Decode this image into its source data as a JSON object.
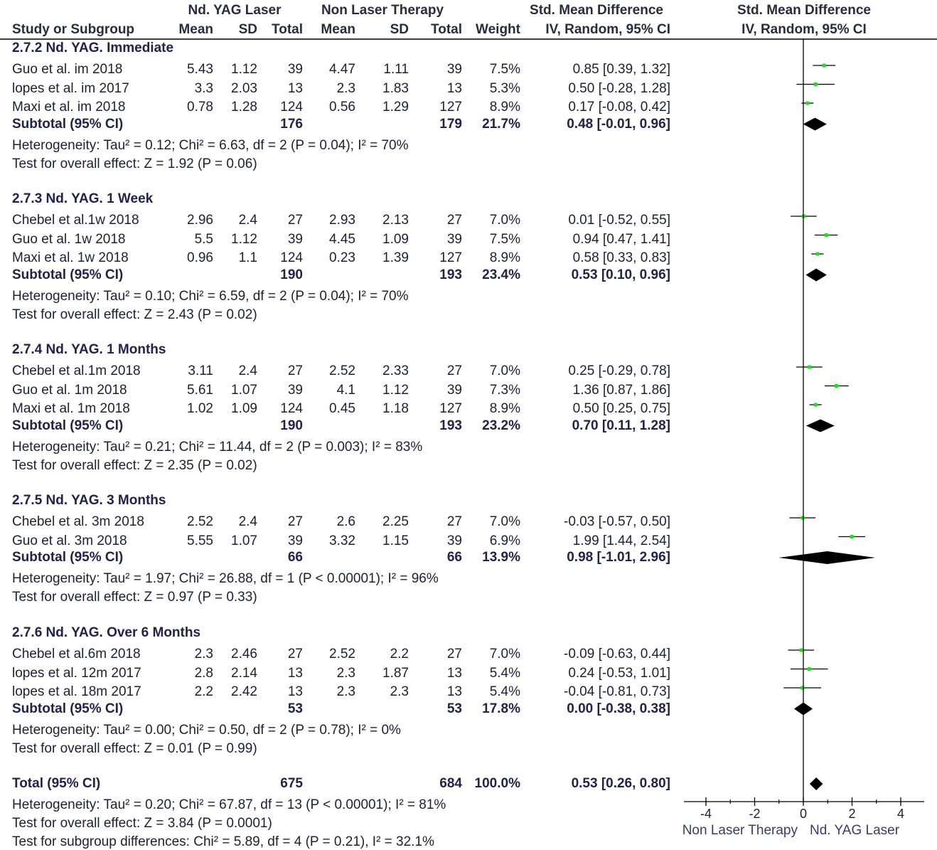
{
  "header": {
    "group1": "Nd. YAG Laser",
    "group2": "Non Laser Therapy",
    "smd_title": "Std. Mean Difference",
    "smd_method": "IV, Random, 95% CI",
    "plot_title": "Std. Mean Difference",
    "plot_method": "IV, Random, 95% CI",
    "col_study": "Study or Subgroup",
    "col_mean1": "Mean",
    "col_sd1": "SD",
    "col_total1": "Total",
    "col_mean2": "Mean",
    "col_sd2": "SD",
    "col_total2": "Total",
    "col_weight": "Weight"
  },
  "subgroups": [
    {
      "title": "2.7.2 Nd. YAG. Immediate",
      "studies": [
        {
          "name": "Guo et al. im 2018",
          "mean1": "5.43",
          "sd1": "1.12",
          "total1": "39",
          "mean2": "4.47",
          "sd2": "1.11",
          "total2": "39",
          "weight": "7.5%",
          "ci": "0.85 [0.39, 1.32]",
          "est": 0.85,
          "lo": 0.39,
          "hi": 1.32
        },
        {
          "name": "lopes et al. im  2017",
          "mean1": "3.3",
          "sd1": "2.03",
          "total1": "13",
          "mean2": "2.3",
          "sd2": "1.83",
          "total2": "13",
          "weight": "5.3%",
          "ci": "0.50 [-0.28, 1.28]",
          "est": 0.5,
          "lo": -0.28,
          "hi": 1.28
        },
        {
          "name": "Maxi et al. im 2018",
          "mean1": "0.78",
          "sd1": "1.28",
          "total1": "124",
          "mean2": "0.56",
          "sd2": "1.29",
          "total2": "127",
          "weight": "8.9%",
          "ci": "0.17 [-0.08, 0.42]",
          "est": 0.17,
          "lo": -0.08,
          "hi": 0.42
        }
      ],
      "subtotal": {
        "label": "Subtotal (95% CI)",
        "total1": "176",
        "total2": "179",
        "weight": "21.7%",
        "ci": "0.48 [-0.01, 0.96]",
        "est": 0.48,
        "lo": -0.01,
        "hi": 0.96
      },
      "heterogeneity": "Heterogeneity: Tau² = 0.12; Chi² = 6.63, df = 2 (P = 0.04); I² = 70%",
      "overall": "Test for overall effect: Z = 1.92 (P = 0.06)"
    },
    {
      "title": "2.7.3 Nd. YAG. 1 Week",
      "studies": [
        {
          "name": "Chebel et al.1w  2018",
          "mean1": "2.96",
          "sd1": "2.4",
          "total1": "27",
          "mean2": "2.93",
          "sd2": "2.13",
          "total2": "27",
          "weight": "7.0%",
          "ci": "0.01 [-0.52, 0.55]",
          "est": 0.01,
          "lo": -0.52,
          "hi": 0.55
        },
        {
          "name": "Guo et al. 1w 2018",
          "mean1": "5.5",
          "sd1": "1.12",
          "total1": "39",
          "mean2": "4.45",
          "sd2": "1.09",
          "total2": "39",
          "weight": "7.5%",
          "ci": "0.94 [0.47, 1.41]",
          "est": 0.94,
          "lo": 0.47,
          "hi": 1.41
        },
        {
          "name": "Maxi et al. 1w 2018",
          "mean1": "0.96",
          "sd1": "1.1",
          "total1": "124",
          "mean2": "0.23",
          "sd2": "1.39",
          "total2": "127",
          "weight": "8.9%",
          "ci": "0.58 [0.33, 0.83]",
          "est": 0.58,
          "lo": 0.33,
          "hi": 0.83
        }
      ],
      "subtotal": {
        "label": "Subtotal (95% CI)",
        "total1": "190",
        "total2": "193",
        "weight": "23.4%",
        "ci": "0.53 [0.10, 0.96]",
        "est": 0.53,
        "lo": 0.1,
        "hi": 0.96
      },
      "heterogeneity": "Heterogeneity: Tau² = 0.10; Chi² = 6.59, df = 2 (P = 0.04); I² = 70%",
      "overall": "Test for overall effect: Z = 2.43 (P = 0.02)"
    },
    {
      "title": "2.7.4 Nd. YAG. 1 Months",
      "studies": [
        {
          "name": "Chebel et al.1m 2018",
          "mean1": "3.11",
          "sd1": "2.4",
          "total1": "27",
          "mean2": "2.52",
          "sd2": "2.33",
          "total2": "27",
          "weight": "7.0%",
          "ci": "0.25 [-0.29, 0.78]",
          "est": 0.25,
          "lo": -0.29,
          "hi": 0.78
        },
        {
          "name": "Guo et al. 1m 2018",
          "mean1": "5.61",
          "sd1": "1.07",
          "total1": "39",
          "mean2": "4.1",
          "sd2": "1.12",
          "total2": "39",
          "weight": "7.3%",
          "ci": "1.36 [0.87, 1.86]",
          "est": 1.36,
          "lo": 0.87,
          "hi": 1.86
        },
        {
          "name": "Maxi et al. 1m 2018",
          "mean1": "1.02",
          "sd1": "1.09",
          "total1": "124",
          "mean2": "0.45",
          "sd2": "1.18",
          "total2": "127",
          "weight": "8.9%",
          "ci": "0.50 [0.25, 0.75]",
          "est": 0.5,
          "lo": 0.25,
          "hi": 0.75
        }
      ],
      "subtotal": {
        "label": "Subtotal (95% CI)",
        "total1": "190",
        "total2": "193",
        "weight": "23.2%",
        "ci": "0.70 [0.11, 1.28]",
        "est": 0.7,
        "lo": 0.11,
        "hi": 1.28
      },
      "heterogeneity": "Heterogeneity: Tau² = 0.21; Chi² = 11.44, df = 2 (P = 0.003); I² = 83%",
      "overall": "Test for overall effect: Z = 2.35 (P = 0.02)"
    },
    {
      "title": "2.7.5 Nd. YAG. 3 Months",
      "studies": [
        {
          "name": "Chebel et al. 3m 2018",
          "mean1": "2.52",
          "sd1": "2.4",
          "total1": "27",
          "mean2": "2.6",
          "sd2": "2.25",
          "total2": "27",
          "weight": "7.0%",
          "ci": "-0.03 [-0.57, 0.50]",
          "est": -0.03,
          "lo": -0.57,
          "hi": 0.5
        },
        {
          "name": "Guo et al. 3m 2018",
          "mean1": "5.55",
          "sd1": "1.07",
          "total1": "39",
          "mean2": "3.32",
          "sd2": "1.15",
          "total2": "39",
          "weight": "6.9%",
          "ci": "1.99 [1.44, 2.54]",
          "est": 1.99,
          "lo": 1.44,
          "hi": 2.54
        }
      ],
      "subtotal": {
        "label": "Subtotal (95% CI)",
        "total1": "66",
        "total2": "66",
        "weight": "13.9%",
        "ci": "0.98 [-1.01, 2.96]",
        "est": 0.98,
        "lo": -1.01,
        "hi": 2.96
      },
      "heterogeneity": "Heterogeneity: Tau² = 1.97; Chi² = 26.88, df = 1 (P < 0.00001); I² = 96%",
      "overall": "Test for overall effect: Z = 0.97 (P = 0.33)"
    },
    {
      "title": "2.7.6 Nd. YAG. Over 6 Months",
      "studies": [
        {
          "name": "Chebel et al.6m  2018",
          "mean1": "2.3",
          "sd1": "2.46",
          "total1": "27",
          "mean2": "2.52",
          "sd2": "2.2",
          "total2": "27",
          "weight": "7.0%",
          "ci": "-0.09 [-0.63, 0.44]",
          "est": -0.09,
          "lo": -0.63,
          "hi": 0.44
        },
        {
          "name": "lopes et al. 12m  2017",
          "mean1": "2.8",
          "sd1": "2.14",
          "total1": "13",
          "mean2": "2.3",
          "sd2": "1.87",
          "total2": "13",
          "weight": "5.4%",
          "ci": "0.24 [-0.53, 1.01]",
          "est": 0.24,
          "lo": -0.53,
          "hi": 1.01
        },
        {
          "name": "lopes et al. 18m  2017",
          "mean1": "2.2",
          "sd1": "2.42",
          "total1": "13",
          "mean2": "2.3",
          "sd2": "2.3",
          "total2": "13",
          "weight": "5.4%",
          "ci": "-0.04 [-0.81, 0.73]",
          "est": -0.04,
          "lo": -0.81,
          "hi": 0.73
        }
      ],
      "subtotal": {
        "label": "Subtotal (95% CI)",
        "total1": "53",
        "total2": "53",
        "weight": "17.8%",
        "ci": "0.00 [-0.38, 0.38]",
        "est": 0.0,
        "lo": -0.38,
        "hi": 0.38
      },
      "heterogeneity": "Heterogeneity: Tau² = 0.00; Chi² = 0.50, df = 2 (P = 0.78); I² = 0%",
      "overall": "Test for overall effect: Z = 0.01 (P = 0.99)"
    }
  ],
  "total": {
    "label": "Total (95% CI)",
    "total1": "675",
    "total2": "684",
    "weight": "100.0%",
    "ci": "0.53 [0.26, 0.80]",
    "est": 0.53,
    "lo": 0.26,
    "hi": 0.8
  },
  "footer": {
    "heterogeneity": "Heterogeneity: Tau² = 0.20; Chi² = 67.87, df = 13 (P < 0.00001); I² = 81%",
    "overall": "Test for overall effect: Z = 3.84 (P = 0.0001)",
    "subgroup_diff": "Test for subgroup differences: Chi² = 5.89, df = 4 (P = 0.21), I² = 32.1%"
  },
  "chart_data": {
    "type": "scatter",
    "xlim": [
      -4,
      4
    ],
    "ticks": [
      "-4",
      "-2",
      "0",
      "2",
      "4"
    ],
    "tick_values": [
      -4,
      -2,
      0,
      2,
      4
    ],
    "left_label": "Non Laser Therapy",
    "right_label": "Nd. YAG Laser",
    "colors": {
      "point": "#22dd22",
      "line": "#000000",
      "diamond": "#000000"
    }
  }
}
